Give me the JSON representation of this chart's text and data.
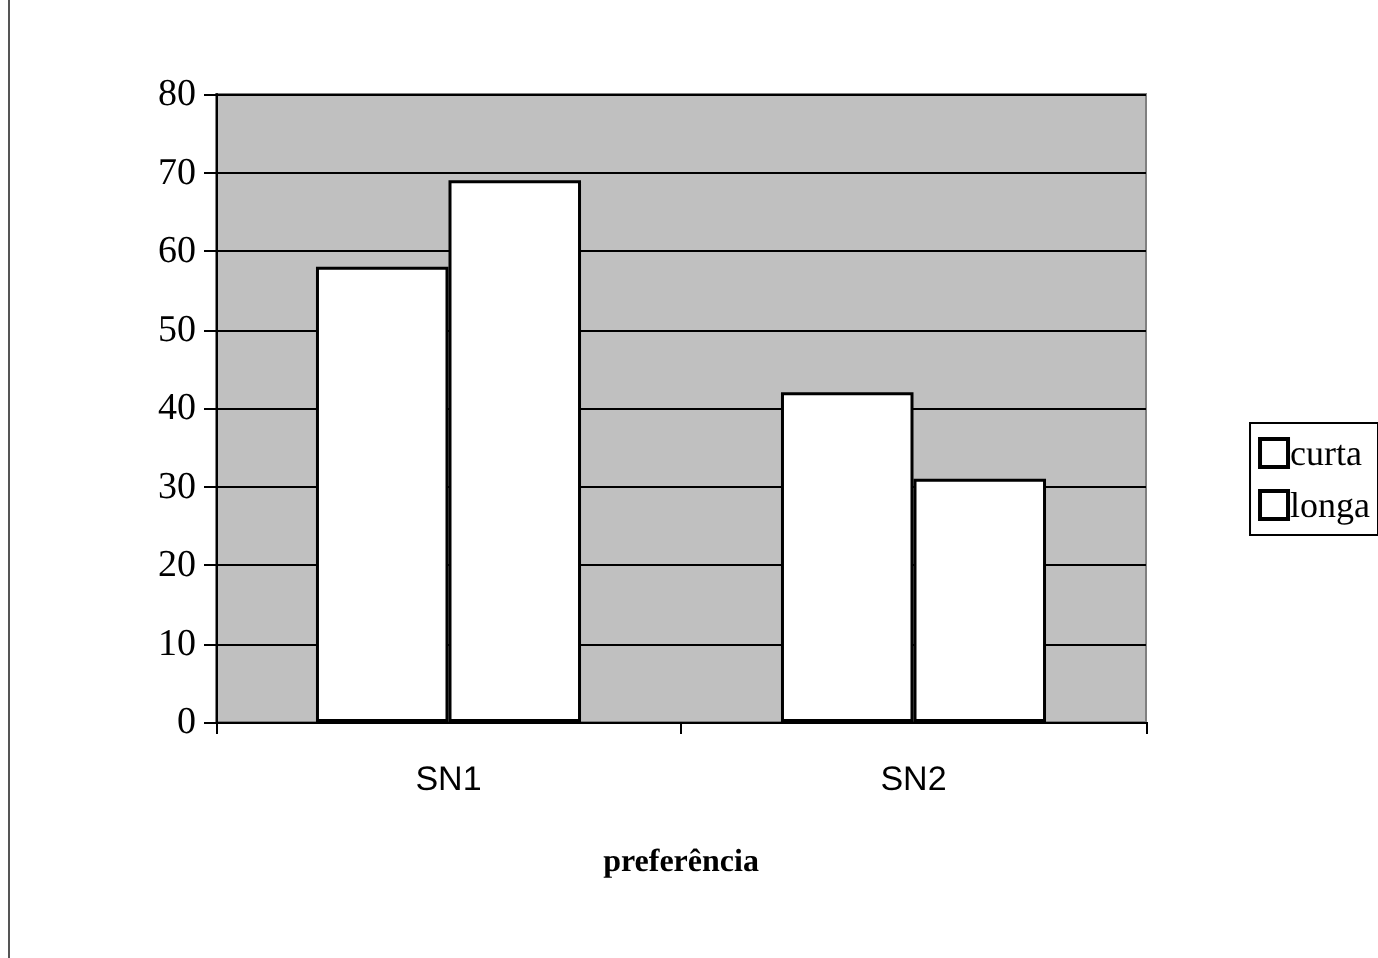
{
  "chart_data": {
    "type": "bar",
    "xlabel": "preferência",
    "categories": [
      "SN1",
      "SN2"
    ],
    "series": [
      {
        "name": "curta",
        "color": "#ffffff",
        "values": [
          58,
          42
        ]
      },
      {
        "name": "longa",
        "color": "#ffffff",
        "values": [
          69,
          31
        ]
      }
    ],
    "ylim": [
      0,
      80
    ],
    "yticks": [
      0,
      10,
      20,
      30,
      40,
      50,
      60,
      70,
      80
    ],
    "grid": "y",
    "legend": "right"
  }
}
